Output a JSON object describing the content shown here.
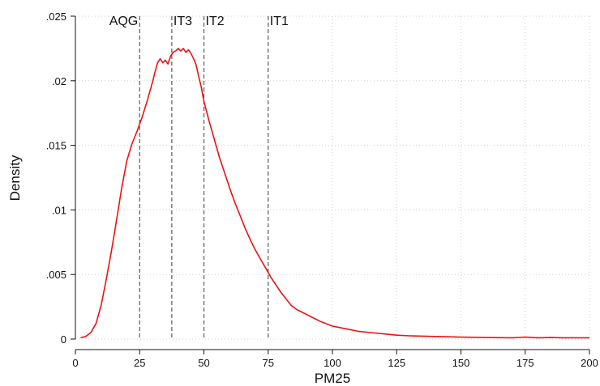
{
  "chart_data": {
    "type": "line",
    "title": "",
    "xlabel": "PM25",
    "ylabel": "Density",
    "xlim": [
      0,
      200
    ],
    "ylim": [
      0,
      0.025
    ],
    "grid": true,
    "legend": "none",
    "x_ticks": [
      "0",
      "25",
      "50",
      "75",
      "100",
      "125",
      "150",
      "175",
      "200"
    ],
    "y_ticks": [
      "0",
      ".005",
      ".01",
      ".015",
      ".02",
      ".025"
    ],
    "series": [
      {
        "color": "#ee1111",
        "x": [
          2,
          4,
          6,
          8,
          10,
          12,
          14,
          16,
          18,
          20,
          22,
          24,
          26,
          28,
          30,
          31,
          32,
          33,
          34,
          35,
          36,
          37,
          38,
          39,
          40,
          41,
          42,
          43,
          44,
          45,
          46,
          47,
          48,
          49,
          50,
          52,
          54,
          56,
          58,
          60,
          62,
          64,
          66,
          68,
          70,
          72,
          74,
          76,
          78,
          80,
          82,
          84,
          86,
          88,
          90,
          95,
          100,
          105,
          110,
          115,
          120,
          125,
          130,
          140,
          150,
          160,
          170,
          175,
          180,
          185,
          190,
          195,
          200
        ],
        "y": [
          0.0001,
          0.0002,
          0.0005,
          0.0012,
          0.0026,
          0.0046,
          0.0068,
          0.0092,
          0.0117,
          0.0138,
          0.0151,
          0.0161,
          0.0172,
          0.0185,
          0.0199,
          0.0207,
          0.0214,
          0.0217,
          0.0214,
          0.0216,
          0.0213,
          0.0219,
          0.0222,
          0.0223,
          0.0225,
          0.0223,
          0.0225,
          0.0222,
          0.0224,
          0.0221,
          0.0217,
          0.0212,
          0.0203,
          0.0195,
          0.0184,
          0.0169,
          0.0155,
          0.0141,
          0.0129,
          0.0117,
          0.0106,
          0.0096,
          0.0086,
          0.0077,
          0.0069,
          0.0062,
          0.0055,
          0.0048,
          0.0042,
          0.0036,
          0.0031,
          0.0026,
          0.0023,
          0.0021,
          0.0019,
          0.0014,
          0.001,
          0.0008,
          0.0006,
          0.0005,
          0.0004,
          0.0003,
          0.00025,
          0.0002,
          0.00015,
          0.00012,
          0.0001,
          0.00015,
          0.0001,
          0.00012,
          0.0001,
          0.0001,
          0.0001
        ]
      }
    ],
    "reference_lines": [
      {
        "label": "AQG",
        "x": 25
      },
      {
        "label": "IT3",
        "x": 37.5
      },
      {
        "label": "IT2",
        "x": 50
      },
      {
        "label": "IT1",
        "x": 75
      }
    ]
  }
}
